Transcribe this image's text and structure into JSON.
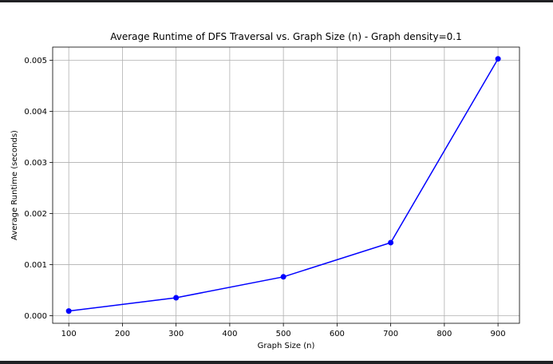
{
  "chart_data": {
    "type": "line",
    "title": "Average Runtime of DFS Traversal vs. Graph Size (n) - Graph density=0.1",
    "xlabel": "Graph Size (n)",
    "ylabel": "Average Runtime (seconds)",
    "x": [
      100,
      300,
      500,
      700,
      900
    ],
    "series": [
      {
        "values": [
          9e-05,
          0.00035,
          0.00076,
          0.00143,
          0.00503
        ]
      }
    ],
    "xlim": [
      70,
      940
    ],
    "ylim": [
      -0.00015,
      0.00526
    ],
    "xticks": [
      100,
      200,
      300,
      400,
      500,
      600,
      700,
      800,
      900
    ],
    "xtick_labels": [
      "100",
      "200",
      "300",
      "400",
      "500",
      "600",
      "700",
      "800",
      "900"
    ],
    "yticks": [
      0.0,
      0.001,
      0.002,
      0.003,
      0.004,
      0.005
    ],
    "ytick_labels": [
      "0.000",
      "0.001",
      "0.002",
      "0.003",
      "0.004",
      "0.005"
    ],
    "grid": true,
    "line_color": "#0000ff",
    "marker": "circle"
  }
}
